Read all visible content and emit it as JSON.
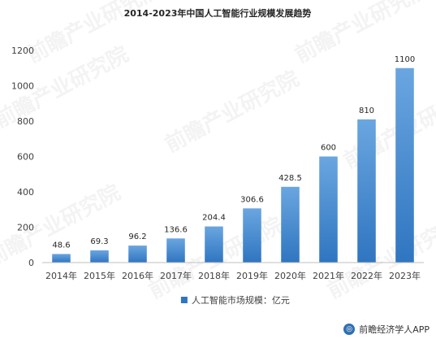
{
  "chart_data": {
    "type": "bar",
    "title": "2014-2023年中国人工智能行业规模发展趋势",
    "categories": [
      "2014年",
      "2015年",
      "2016年",
      "2017年",
      "2018年",
      "2019年",
      "2020年",
      "2021年",
      "2022年",
      "2023年"
    ],
    "series": [
      {
        "name": "人工智能市场规模：亿元",
        "values": [
          48.6,
          69.3,
          96.2,
          136.6,
          204.4,
          306.6,
          428.5,
          600,
          810,
          1100
        ],
        "data_labels": [
          "48.6",
          "69.3",
          "96.2",
          "136.6",
          "204.4",
          "306.6",
          "428.5",
          "600",
          "810",
          "1100"
        ]
      }
    ],
    "ylim": [
      0,
      1200
    ],
    "yticks": [
      0,
      200,
      400,
      600,
      800,
      1000,
      1200
    ],
    "grid": false,
    "legend_position": "bottom",
    "colors": {
      "bar_top": "#6aa6e0",
      "bar_bottom": "#2f75c0",
      "axis": "#bfbfbf",
      "text": "#404040"
    }
  },
  "watermark_text": "前瞻产业研究院",
  "footer": {
    "logo_icon": "qianzhan-logo-icon",
    "label": "前瞻经济学人APP"
  }
}
